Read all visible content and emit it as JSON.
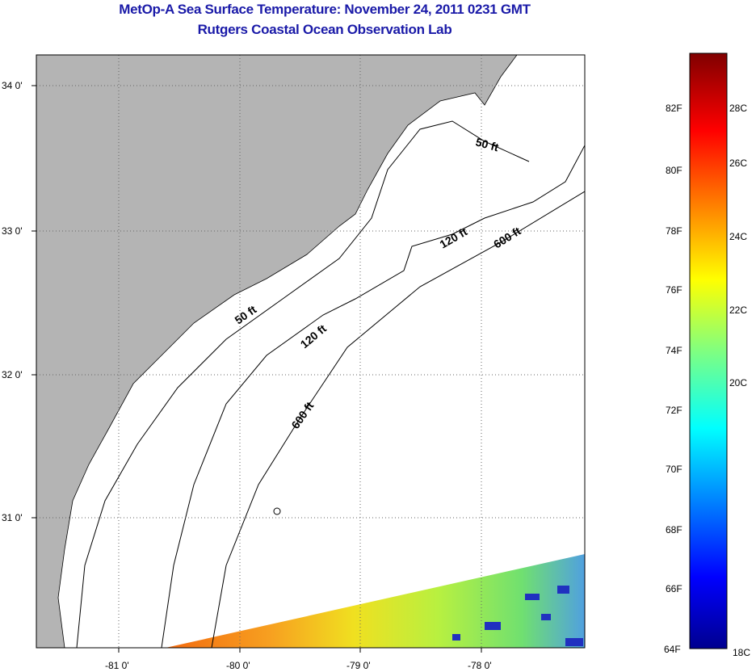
{
  "title": "MetOp-A Sea Surface Temperature:  November 24, 2011 0231 GMT",
  "subtitle": "Rutgers Coastal Ocean Observation Lab",
  "map": {
    "lon_ticks": [
      "-81 0'",
      "-80 0'",
      "-79 0'",
      "-78 0'"
    ],
    "lat_ticks": [
      "34 0'",
      "33 0'",
      "32 0'",
      "31 0'"
    ],
    "contours": {
      "c50a": "50 ft",
      "c50b": "50 ft",
      "c120a": "120 ft",
      "c120b": "120 ft",
      "c600a": "600 ft",
      "c600b": "600 ft"
    },
    "colors": {
      "land": "#b4b4b4",
      "ocean": "#ffffff"
    }
  },
  "colorbar": {
    "f_labels": [
      "82F",
      "80F",
      "78F",
      "76F",
      "74F",
      "72F",
      "70F",
      "68F",
      "66F",
      "64F"
    ],
    "c_labels": [
      "28C",
      "26C",
      "24C",
      "22C",
      "20C",
      "18C"
    ]
  }
}
